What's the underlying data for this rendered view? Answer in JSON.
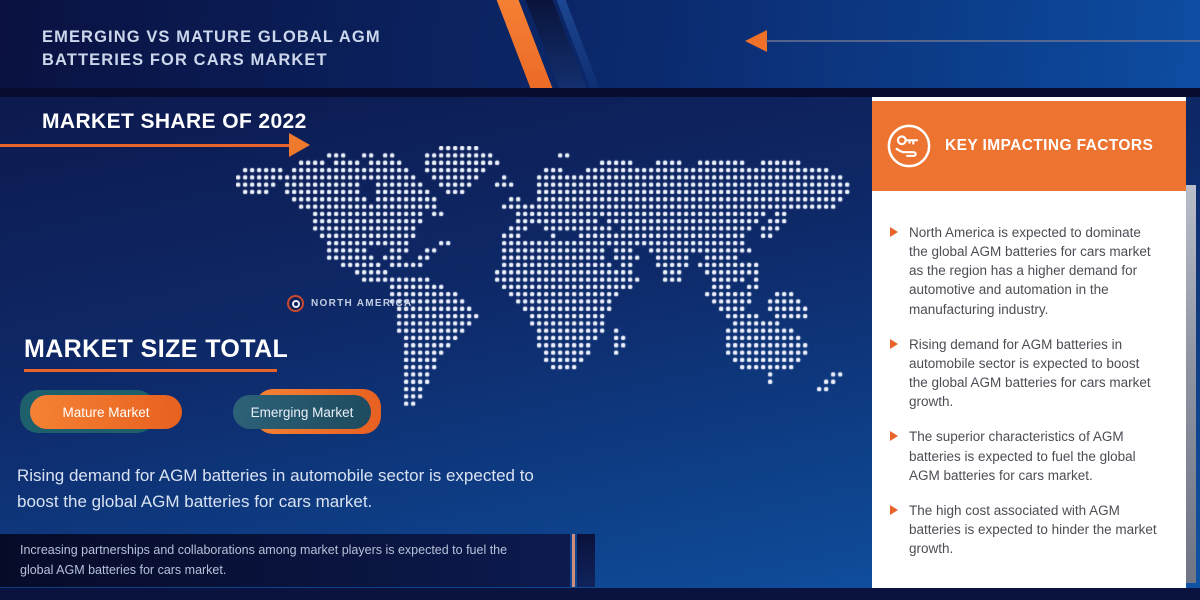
{
  "header": {
    "title_line1": "EMERGING VS MATURE GLOBAL AGM",
    "title_line2": "BATTERIES FOR CARS MARKET"
  },
  "market_share": {
    "heading": "MARKET SHARE OF 2022"
  },
  "map": {
    "region_label": "NORTH AMERICA",
    "marker_icon": "target-ring-icon"
  },
  "market_size": {
    "heading": "MARKET SIZE TOTAL",
    "buttons": [
      {
        "label": "Mature Market"
      },
      {
        "label": "Emerging Market"
      }
    ],
    "description": "Rising demand for AGM batteries in automobile sector is expected to boost the global AGM batteries for cars market."
  },
  "footer_note": "Increasing partnerships and collaborations among market players is expected to fuel the global AGM batteries for cars market.",
  "key_factors": {
    "title": "KEY IMPACTING FACTORS",
    "icon": "hand-holding-key-icon",
    "bullets": [
      "North America is expected to dominate the global AGM batteries for cars market as the region has a higher demand for automotive and automation in the manufacturing industry.",
      "Rising demand for AGM batteries in automobile sector is expected to boost the global AGM batteries for cars market growth.",
      "The superior characteristics of AGM batteries is expected to fuel the global AGM batteries for cars market.",
      "The high cost associated with AGM batteries is expected to hinder the market growth."
    ]
  },
  "colors": {
    "accent_orange": "#e8642b",
    "panel_orange": "#ed7331",
    "deep_navy": "#0a1240",
    "teal_pill": "#255a6e",
    "bg_top": "#0c1445",
    "bg_bottom": "#0f55a6",
    "map_dot": "#eef3fc"
  }
}
